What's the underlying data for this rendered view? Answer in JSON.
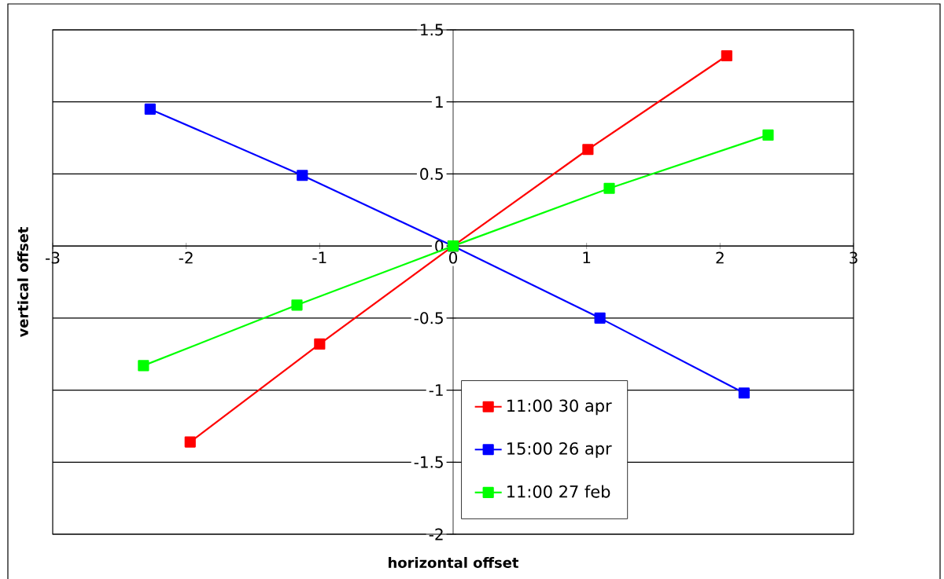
{
  "chart_data": {
    "type": "line",
    "xlabel": "horizontal offset",
    "ylabel": "vertical offset",
    "xlim": [
      -3,
      3
    ],
    "ylim": [
      -2,
      1.5
    ],
    "xticks": [
      -3,
      -2,
      -1,
      0,
      1,
      2,
      3
    ],
    "yticks": [
      -2,
      -1.5,
      -1,
      -0.5,
      0,
      0.5,
      1,
      1.5
    ],
    "grid": "y",
    "legend": "bottom right",
    "marker": "square",
    "line_style": "solid",
    "series": [
      {
        "name": "11:00 30 apr",
        "color": "#ff0000",
        "x": [
          -1.97,
          -1.0,
          0,
          1.01,
          2.05
        ],
        "values": [
          -1.36,
          -0.68,
          0,
          0.67,
          1.32
        ]
      },
      {
        "name": "15:00 26 apr",
        "color": "#0000ff",
        "x": [
          -2.27,
          -1.13,
          0,
          1.1,
          2.18
        ],
        "values": [
          0.95,
          0.49,
          0,
          -0.5,
          -1.02
        ]
      },
      {
        "name": "11:00 27 feb",
        "color": "#00ff00",
        "x": [
          -2.32,
          -1.17,
          0,
          1.17,
          2.36
        ],
        "values": [
          -0.83,
          -0.41,
          0,
          0.4,
          0.77
        ]
      }
    ]
  }
}
